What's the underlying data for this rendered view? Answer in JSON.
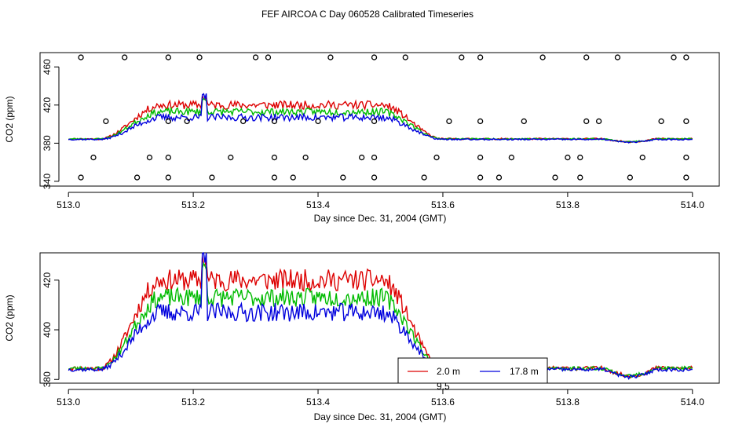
{
  "figure": {
    "title": "FEF AIRCOA C  Day 060528  Calibrated Timeseries"
  },
  "colors": {
    "red": "#dd0000",
    "green": "#00bb00",
    "blue": "#0000dd",
    "black": "#000000"
  },
  "chart_data": [
    {
      "type": "line",
      "panel": "top",
      "xlabel": "Day since Dec. 31, 2004 (GMT)",
      "ylabel": "CO2 (ppm)",
      "xlim": [
        512.996,
        514.004
      ],
      "ylim": [
        335,
        475
      ],
      "xticks": [
        513.0,
        513.2,
        513.4,
        513.6,
        513.8,
        514.0
      ],
      "xtick_labels": [
        "513.0",
        "513.2",
        "513.4",
        "513.6",
        "513.8",
        "514.0"
      ],
      "yticks": [
        340,
        380,
        420,
        460
      ],
      "ytick_labels": [
        "340",
        "380",
        "420",
        "460"
      ],
      "series_summary": [
        {
          "name": "red (2.0 m)",
          "color": "red",
          "start": 385,
          "plateau": 418,
          "end": 385
        },
        {
          "name": "green",
          "color": "green",
          "start": 385,
          "plateau": 412,
          "end": 385
        },
        {
          "name": "blue (17.8 m)",
          "color": "blue",
          "start": 384,
          "plateau": 406,
          "end": 384
        }
      ],
      "points": {
        "description": "open circle markers",
        "x": [
          513.02,
          513.09,
          513.16,
          513.21,
          513.3,
          513.32,
          513.42,
          513.49,
          513.54,
          513.63,
          513.66,
          513.76,
          513.83,
          513.88,
          513.97,
          513.99,
          513.06,
          513.16,
          513.19,
          513.28,
          513.33,
          513.4,
          513.49,
          513.61,
          513.66,
          513.73,
          513.83,
          513.85,
          513.95,
          513.99,
          513.04,
          513.13,
          513.16,
          513.26,
          513.33,
          513.38,
          513.47,
          513.49,
          513.59,
          513.66,
          513.71,
          513.8,
          513.82,
          513.92,
          513.99,
          513.02,
          513.11,
          513.16,
          513.23,
          513.33,
          513.36,
          513.44,
          513.49,
          513.57,
          513.66,
          513.69,
          513.78,
          513.82,
          513.9,
          513.99
        ],
        "y": [
          470,
          470,
          470,
          470,
          470,
          470,
          470,
          470,
          470,
          470,
          470,
          470,
          470,
          470,
          470,
          470,
          403,
          403,
          403,
          403,
          403,
          403,
          403,
          403,
          403,
          403,
          403,
          403,
          403,
          403,
          365,
          365,
          365,
          365,
          365,
          365,
          365,
          365,
          365,
          365,
          365,
          365,
          365,
          365,
          365,
          344,
          344,
          344,
          344,
          344,
          344,
          344,
          344,
          344,
          344,
          344,
          344,
          344,
          344,
          344
        ]
      }
    },
    {
      "type": "line",
      "panel": "bottom",
      "xlabel": "Day since Dec. 31, 2004 (GMT)",
      "ylabel": "CO2 (ppm)",
      "xlim": [
        512.996,
        514.004
      ],
      "ylim": [
        378.5,
        431
      ],
      "xticks": [
        513.0,
        513.2,
        513.4,
        513.6,
        513.8,
        514.0
      ],
      "xtick_labels": [
        "513.0",
        "513.2",
        "513.4",
        "513.6",
        "513.8",
        "514.0"
      ],
      "yticks": [
        380,
        400,
        420
      ],
      "ytick_labels": [
        "380",
        "400",
        "420"
      ],
      "series_summary": [
        {
          "name": "2.0 m",
          "color": "red",
          "start": 384,
          "peak": 428,
          "plateau": 421,
          "end": 384
        },
        {
          "name": "green (unlabeled)",
          "color": "green",
          "start": 384,
          "plateau": 414,
          "end": 384
        },
        {
          "name": "17.8 m",
          "color": "blue",
          "start": 384,
          "peak": 430,
          "plateau": 407,
          "end": 384
        }
      ],
      "legend": {
        "placement": "bottom-center",
        "entries": [
          {
            "label": "2.0 m",
            "color": "red"
          },
          {
            "label": "17.8 m",
            "color": "blue"
          }
        ],
        "partial_text": "9.5"
      }
    }
  ]
}
